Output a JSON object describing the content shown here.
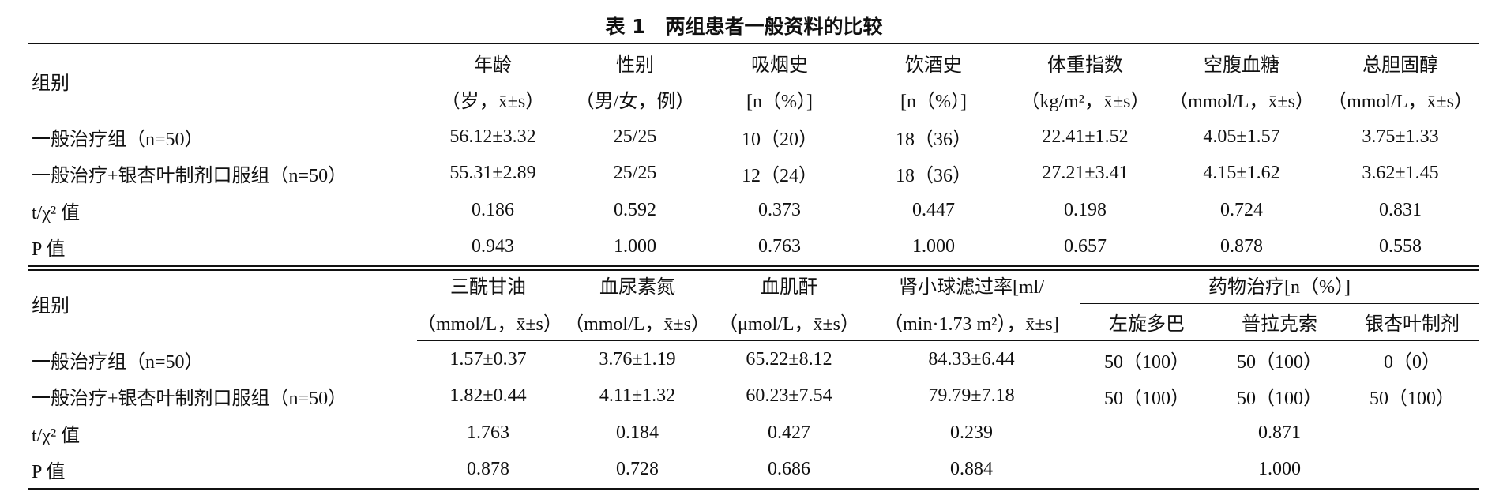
{
  "title": "表 1　两组患者一般资料的比较",
  "table1": {
    "columns": [
      [
        "组别"
      ],
      [
        "年龄",
        "（岁，x̄±s）"
      ],
      [
        "性别",
        "（男/女，例）"
      ],
      [
        "吸烟史",
        "[n（%）]"
      ],
      [
        "饮酒史",
        "[n（%）]"
      ],
      [
        "体重指数",
        "（kg/m²，x̄±s）"
      ],
      [
        "空腹血糖",
        "（mmol/L，x̄±s）"
      ],
      [
        "总胆固醇",
        "（mmol/L，x̄±s）"
      ]
    ],
    "rows": [
      [
        "一般治疗组（n=50）",
        "56.12±3.32",
        "25/25",
        "10（20）",
        "18（36）",
        "22.41±1.52",
        "4.05±1.57",
        "3.75±1.33"
      ],
      [
        "一般治疗+银杏叶制剂口服组（n=50）",
        "55.31±2.89",
        "25/25",
        "12（24）",
        "18（36）",
        "27.21±3.41",
        "4.15±1.62",
        "3.62±1.45"
      ],
      [
        "t/χ² 值",
        "0.186",
        "0.592",
        "0.373",
        "0.447",
        "0.198",
        "0.724",
        "0.831"
      ],
      [
        "P 值",
        "0.943",
        "1.000",
        "0.763",
        "1.000",
        "0.657",
        "0.878",
        "0.558"
      ]
    ]
  },
  "table2": {
    "columns": [
      [
        "组别"
      ],
      [
        "三酰甘油",
        "（mmol/L，x̄±s）"
      ],
      [
        "血尿素氮",
        "（mmol/L，x̄±s）"
      ],
      [
        "血肌酐",
        "（μmol/L，x̄±s）"
      ],
      [
        "肾小球滤过率[ml/",
        "（min·1.73 m²），x̄±s]"
      ]
    ],
    "group": {
      "label": "药物治疗[n（%）]",
      "columns": [
        "左旋多巴",
        "普拉克索",
        "银杏叶制剂"
      ]
    },
    "rows": [
      [
        "一般治疗组（n=50）",
        "1.57±0.37",
        "3.76±1.19",
        "65.22±8.12",
        "84.33±6.44",
        "50（100）",
        "50（100）",
        "0（0）"
      ],
      [
        "一般治疗+银杏叶制剂口服组（n=50）",
        "1.82±0.44",
        "4.11±1.32",
        "60.23±7.54",
        "79.79±7.18",
        "50（100）",
        "50（100）",
        "50（100）"
      ],
      [
        "t/χ² 值",
        "1.763",
        "0.184",
        "0.427",
        "0.239",
        "0.871"
      ],
      [
        "P 值",
        "0.878",
        "0.728",
        "0.686",
        "0.884",
        "1.000"
      ]
    ]
  }
}
